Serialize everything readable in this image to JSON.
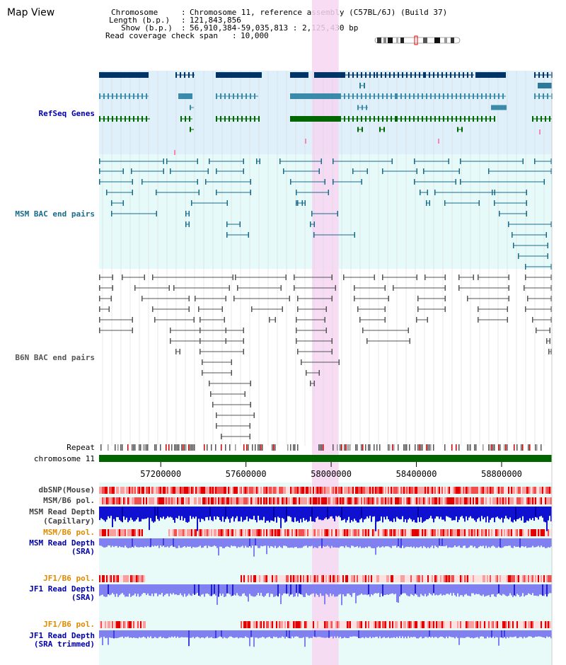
{
  "app": {
    "title": "Map View"
  },
  "info": {
    "chromosome_label": "Chromosome",
    "chromosome_value": "Chromosome 11, reference assembly (C57BL/6J) (Build 37)",
    "length_label": "Length (b.p.)",
    "length_value": "121,843,856",
    "show_label": "Show (b.p.)",
    "show_value": "56,910,384-59,035,813 : 2,125,430 bp",
    "span_label": "Read coverage check span",
    "span_value": "10,000"
  },
  "tracks": {
    "refseq": "RefSeq Genes",
    "msm_bac": "MSM BAC end pairs",
    "b6n_bac": "B6N BAC end pairs",
    "repeat": "Repeat",
    "chromosome": "chromosome 11",
    "dbsnp": "dbSNP(Mouse)",
    "msm_b6_pol_1": "MSM/B6 pol.",
    "msm_depth_cap_1": "MSM Read Depth",
    "msm_depth_cap_2": "(Capillary)",
    "msm_b6_pol_2": "MSM/B6 pol.",
    "msm_depth_sra_1": "MSM Read Depth",
    "msm_depth_sra_2": "(SRA)",
    "jf1_pol_1": "JF1/B6 pol.",
    "jf1_depth_1": "JF1 Read Depth",
    "jf1_depth_2": "(SRA)",
    "jf1_pol_2": "JF1/B6 pol.",
    "jf1_trim_1": "JF1 Read Depth",
    "jf1_trim_2": "(SRA trimmed)"
  },
  "axis": {
    "ticks": [
      "57200000",
      "57600000",
      "58000000",
      "58400000",
      "58800000"
    ],
    "tick_values": [
      57200000,
      57600000,
      58000000,
      58400000,
      58800000
    ],
    "range_start": 56910384,
    "range_end": 59035813
  },
  "highlight": {
    "start": 57910000,
    "end": 58035000
  },
  "colors": {
    "refseq_dark": "#003366",
    "refseq_teal": "#3a8aaa",
    "refseq_green": "#006600",
    "msm_line": "#1a6b8a",
    "b6n_line": "#555555",
    "chromosome": "#006400",
    "highlight": "#f7d6f2",
    "depth_blue": "#2020dd",
    "depth_light": "#8080f0"
  }
}
